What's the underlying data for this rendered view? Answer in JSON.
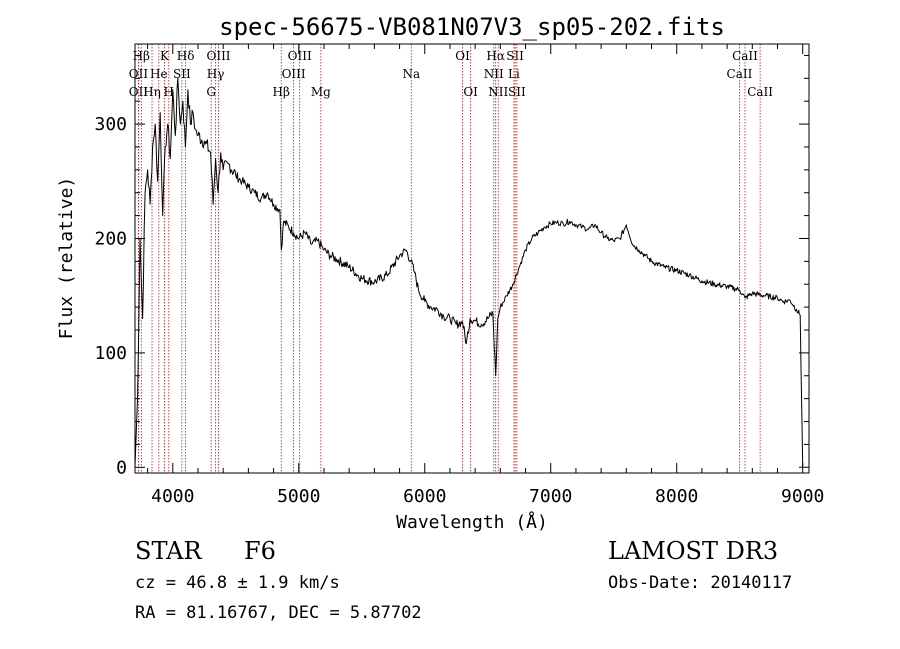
{
  "chart_data": {
    "type": "line",
    "title": "spec-56675-VB081N07V3_sp05-202.fits",
    "xlabel": "Wavelength (Å)",
    "ylabel": "Flux (relative)",
    "xlim": [
      3700,
      9050
    ],
    "ylim": [
      -5,
      370
    ],
    "xticks": [
      4000,
      5000,
      6000,
      7000,
      8000,
      9000
    ],
    "yticks": [
      0,
      100,
      200,
      300
    ],
    "series": [
      {
        "name": "flux",
        "x": [
          3700,
          3720,
          3740,
          3760,
          3780,
          3800,
          3820,
          3840,
          3860,
          3880,
          3900,
          3920,
          3940,
          3960,
          3980,
          4000,
          4020,
          4040,
          4060,
          4080,
          4100,
          4120,
          4140,
          4160,
          4180,
          4200,
          4250,
          4300,
          4320,
          4340,
          4360,
          4380,
          4400,
          4450,
          4500,
          4550,
          4600,
          4650,
          4700,
          4750,
          4800,
          4850,
          4861,
          4880,
          4920,
          4960,
          5000,
          5050,
          5100,
          5150,
          5200,
          5250,
          5300,
          5400,
          5500,
          5600,
          5700,
          5800,
          5850,
          5890,
          5920,
          5950,
          6000,
          6050,
          6100,
          6150,
          6200,
          6250,
          6300,
          6330,
          6360,
          6400,
          6450,
          6500,
          6540,
          6563,
          6580,
          6600,
          6650,
          6700,
          6750,
          6800,
          6850,
          6900,
          6950,
          7000,
          7050,
          7100,
          7150,
          7200,
          7250,
          7300,
          7350,
          7400,
          7450,
          7500,
          7550,
          7600,
          7650,
          7700,
          7750,
          7800,
          7900,
          8000,
          8100,
          8200,
          8300,
          8400,
          8500,
          8542,
          8600,
          8700,
          8800,
          8850,
          8900,
          8950,
          8980,
          9000
        ],
        "y": [
          0,
          60,
          200,
          130,
          240,
          260,
          230,
          280,
          300,
          250,
          310,
          220,
          280,
          300,
          270,
          330,
          290,
          340,
          300,
          320,
          280,
          330,
          300,
          310,
          295,
          290,
          285,
          275,
          230,
          270,
          240,
          275,
          260,
          265,
          255,
          250,
          245,
          240,
          235,
          240,
          230,
          225,
          190,
          215,
          210,
          205,
          200,
          205,
          195,
          198,
          190,
          185,
          182,
          175,
          165,
          162,
          168,
          185,
          190,
          180,
          170,
          155,
          145,
          140,
          138,
          132,
          130,
          125,
          127,
          108,
          130,
          128,
          125,
          130,
          135,
          80,
          130,
          140,
          150,
          160,
          175,
          190,
          200,
          205,
          210,
          213,
          214,
          213,
          215,
          212,
          210,
          208,
          212,
          205,
          200,
          198,
          200,
          212,
          195,
          190,
          185,
          180,
          175,
          172,
          168,
          163,
          160,
          158,
          155,
          148,
          152,
          150,
          148,
          145,
          146,
          138,
          133,
          0
        ]
      }
    ],
    "line_markers": [
      {
        "label": "Hβ",
        "wavelength": 3750,
        "row": 0
      },
      {
        "label": "K",
        "wavelength": 3934,
        "row": 0
      },
      {
        "label": "Hδ",
        "wavelength": 4102,
        "row": 0
      },
      {
        "label": "OIII",
        "wavelength": 4363,
        "row": 0
      },
      {
        "label": "OIII",
        "wavelength": 5007,
        "row": 0
      },
      {
        "label": "OI",
        "wavelength": 6300,
        "row": 0
      },
      {
        "label": "Hα",
        "wavelength": 6563,
        "row": 0
      },
      {
        "label": "SII",
        "wavelength": 6717,
        "row": 0
      },
      {
        "label": "CaII",
        "wavelength": 8542,
        "row": 0
      },
      {
        "label": "OII",
        "wavelength": 3727,
        "row": 1
      },
      {
        "label": "He",
        "wavelength": 3889,
        "row": 1
      },
      {
        "label": "SII",
        "wavelength": 4072,
        "row": 1
      },
      {
        "label": "Hγ",
        "wavelength": 4340,
        "row": 1
      },
      {
        "label": "OIII",
        "wavelength": 4959,
        "row": 1
      },
      {
        "label": "Na",
        "wavelength": 5893,
        "row": 1
      },
      {
        "label": "NII",
        "wavelength": 6548,
        "row": 1
      },
      {
        "label": "Li",
        "wavelength": 6708,
        "row": 1
      },
      {
        "label": "CaII",
        "wavelength": 8498,
        "row": 1
      },
      {
        "label": "OII",
        "wavelength": 3727,
        "row": 2
      },
      {
        "label": "Hη",
        "wavelength": 3835,
        "row": 2
      },
      {
        "label": "H",
        "wavelength": 3968,
        "row": 2
      },
      {
        "label": "G",
        "wavelength": 4305,
        "row": 2
      },
      {
        "label": "Hβ",
        "wavelength": 4861,
        "row": 2
      },
      {
        "label": "Mg",
        "wavelength": 5175,
        "row": 2
      },
      {
        "label": "OI",
        "wavelength": 6364,
        "row": 2
      },
      {
        "label": "NII",
        "wavelength": 6583,
        "row": 2
      },
      {
        "label": "SII",
        "wavelength": 6731,
        "row": 2
      },
      {
        "label": "CaII",
        "wavelength": 8662,
        "row": 2
      }
    ]
  },
  "info": {
    "object_class": "STAR",
    "subclass": "F6",
    "redshift": "cz = 46.8 ± 1.9 km/s",
    "coords": "RA =  81.16767, DEC =   5.87702",
    "survey": "LAMOST DR3",
    "obs_date": "Obs-Date: 20140117"
  },
  "colors": {
    "axis": "#000000",
    "spectrum": "#000000",
    "line_marker": "#b22222"
  }
}
